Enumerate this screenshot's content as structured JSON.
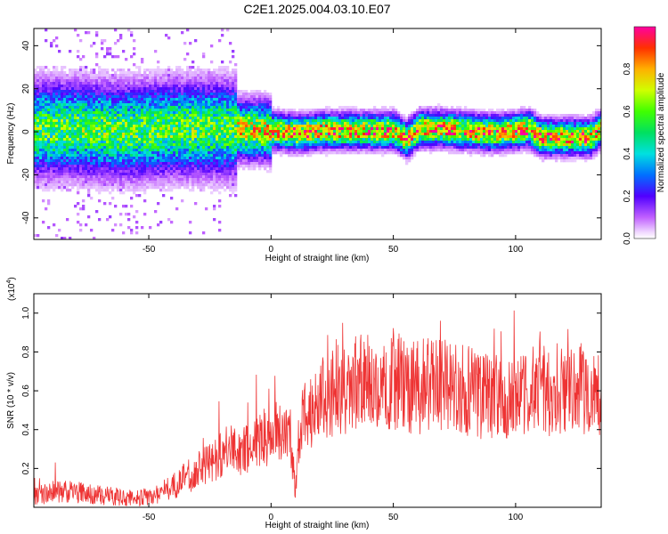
{
  "title": "C2E1.2025.004.03.10.E07",
  "chart_data": [
    {
      "type": "heatmap",
      "xlabel": "Height of straight line (km)",
      "ylabel": "Frequency (Hz)",
      "xlim": [
        -97,
        135
      ],
      "ylim": [
        -50,
        48
      ],
      "xticks": [
        -50,
        0,
        50,
        100
      ],
      "yticks": [
        -40,
        -20,
        0,
        20,
        40
      ],
      "colorbar": {
        "label": "Normalized spectral amplitude",
        "range": [
          0,
          1
        ],
        "ticks": [
          0.0,
          0.2,
          0.4,
          0.6,
          0.8
        ],
        "tick_labels": [
          "0.0",
          "0.2",
          "0.4",
          "0.6",
          "0.8"
        ],
        "colormap": "rainbow (magenta-blue-cyan-green-yellow-red)"
      },
      "ridge": {
        "description": "dominant frequency ridge near 0 Hz",
        "x": [
          -97,
          -80,
          -60,
          -40,
          -20,
          0,
          10,
          20,
          30,
          40,
          50,
          55,
          60,
          70,
          80,
          90,
          100,
          105,
          110,
          120,
          130,
          135
        ],
        "y": [
          2,
          2,
          1,
          2,
          2,
          1,
          0,
          1,
          1,
          1,
          1,
          -3,
          2,
          2,
          1,
          0,
          1,
          2,
          -2,
          -2,
          -2,
          2
        ]
      }
    },
    {
      "type": "line",
      "xlabel": "Height of straight line (km)",
      "ylabel": "SNR (10 * v/v)",
      "yscale_label": "(x10",
      "yscale_exp": "4",
      "xlim": [
        -97,
        135
      ],
      "ylim": [
        0,
        1.1
      ],
      "xticks": [
        -50,
        0,
        50,
        100
      ],
      "yticks": [
        0.2,
        0.4,
        0.6,
        0.8,
        1.0
      ],
      "ytick_labels": [
        "0.2",
        "0.4",
        "0.6",
        "0.8",
        "1.0"
      ],
      "series": [
        {
          "color": "#ee3333",
          "x": [
            -97,
            -90,
            -80,
            -70,
            -60,
            -50,
            -45,
            -40,
            -35,
            -30,
            -25,
            -20,
            -15,
            -10,
            -5,
            0,
            5,
            8,
            10,
            11,
            13,
            15,
            20,
            25,
            30,
            35,
            40,
            45,
            50,
            55,
            60,
            65,
            70,
            75,
            80,
            85,
            90,
            95,
            100,
            105,
            110,
            115,
            120,
            125,
            130,
            135
          ],
          "values": [
            0.05,
            0.08,
            0.08,
            0.06,
            0.05,
            0.05,
            0.08,
            0.11,
            0.15,
            0.19,
            0.23,
            0.28,
            0.3,
            0.29,
            0.35,
            0.38,
            0.4,
            0.38,
            0.05,
            0.3,
            0.45,
            0.5,
            0.55,
            0.6,
            0.62,
            0.64,
            0.65,
            0.64,
            0.64,
            0.63,
            0.62,
            0.63,
            0.62,
            0.61,
            0.6,
            0.58,
            0.57,
            0.56,
            0.55,
            0.58,
            0.62,
            0.6,
            0.63,
            0.62,
            0.58,
            0.6
          ]
        }
      ]
    }
  ]
}
